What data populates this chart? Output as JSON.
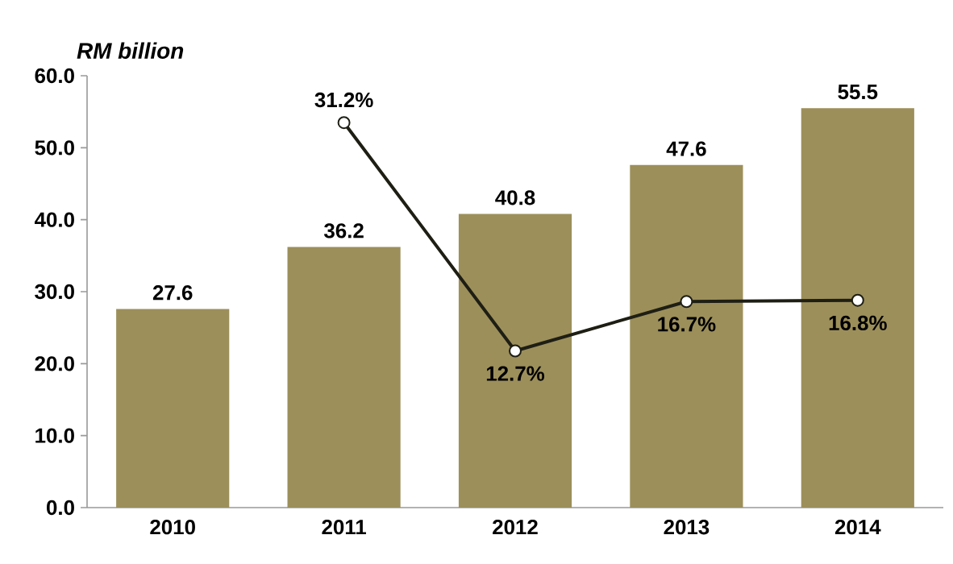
{
  "chart_data": {
    "type": "bar",
    "ylabel": "RM billion",
    "categories": [
      "2010",
      "2011",
      "2012",
      "2013",
      "2014"
    ],
    "series": [
      {
        "color": "#9c8f5a",
        "values": [
          27.6,
          36.2,
          40.8,
          47.6,
          55.5
        ],
        "value_labels": [
          "27.6",
          "36.2",
          "40.8",
          "47.6",
          "55.5"
        ]
      },
      {
        "type": "line",
        "axis": "y2",
        "color": "#1e1e14",
        "marker": "circle",
        "values": [
          null,
          31.2,
          12.7,
          16.7,
          16.8
        ],
        "value_labels": [
          null,
          "31.2%",
          "12.7%",
          "16.7%",
          "16.8%"
        ]
      }
    ],
    "ylim": [
      0,
      60
    ],
    "yticks": [
      {
        "value": 0,
        "label": "0.0"
      },
      {
        "value": 10,
        "label": "10.0"
      },
      {
        "value": 20,
        "label": "20.0"
      },
      {
        "value": 30,
        "label": "30.0"
      },
      {
        "value": 40,
        "label": "40.0"
      },
      {
        "value": 50,
        "label": "50.0"
      },
      {
        "value": 60,
        "label": "60.0"
      }
    ],
    "y2lim": [
      0,
      35
    ],
    "grid": false
  }
}
